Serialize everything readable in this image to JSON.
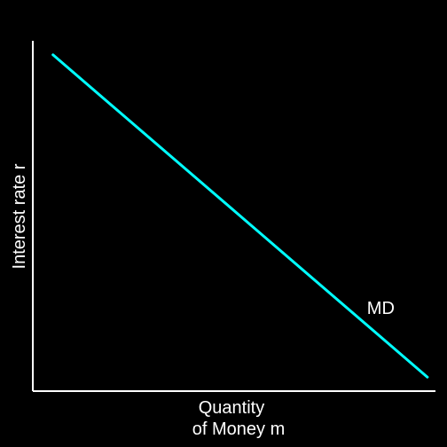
{
  "chart_data": {
    "type": "line",
    "title": "",
    "xlabel": [
      "Quantity",
      "of Money m"
    ],
    "ylabel": "Interest rate r",
    "xlim": [
      0,
      10
    ],
    "ylim": [
      0,
      10
    ],
    "grid": false,
    "series": [
      {
        "name": "MD",
        "x": [
          0.5,
          9.8
        ],
        "y": [
          9.6,
          0.4
        ],
        "color": "#00ffff"
      }
    ],
    "annotations": [
      {
        "text": "MD",
        "x": 8.3,
        "y": 2.2
      }
    ]
  },
  "colors": {
    "background": "#000000",
    "axis": "#ffffff",
    "text": "#ffffff"
  }
}
